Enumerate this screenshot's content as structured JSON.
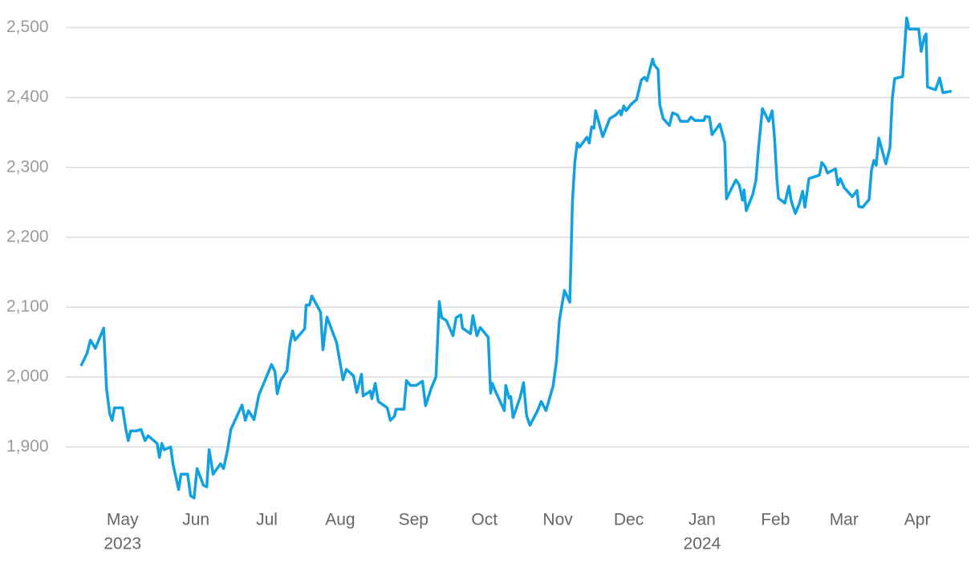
{
  "chart_data": {
    "type": "line",
    "x": [
      -17.6,
      -15,
      -13.6,
      -11.5,
      -8,
      -6.8,
      -5.4,
      -4.4,
      -3.4,
      0,
      1.4,
      2.4,
      3.4,
      6,
      7.8,
      9.5,
      10.8,
      14.6,
      15.6,
      16.6,
      17.6,
      20.3,
      21.4,
      23.7,
      24.7,
      27.5,
      28.8,
      30.2,
      31.5,
      34.2,
      35.6,
      36.6,
      38.3,
      41.4,
      42.7,
      44.4,
      45.8,
      50.5,
      51.9,
      53.2,
      55.6,
      57.6,
      63,
      64.4,
      65.4,
      66.8,
      69.5,
      70.8,
      71.9,
      72.9,
      77,
      77.6,
      79,
      80,
      83.7,
      84.7,
      86.4,
      90.5,
      93.2,
      94.6,
      97.6,
      99,
      101,
      101.7,
      104.7,
      105.4,
      106.8,
      108.1,
      111.9,
      113.2,
      115,
      115.6,
      119,
      120,
      121.7,
      124,
      126.8,
      128.1,
      130.5,
      132.5,
      133.9,
      134.9,
      136.9,
      139.7,
      141,
      143,
      143.7,
      147.1,
      148.1,
      149.8,
      151.2,
      154.6,
      155.6,
      156.3,
      157.6,
      161.4,
      162,
      163.4,
      164.1,
      165.1,
      168.1,
      169.5,
      170.8,
      172.2,
      175.3,
      177,
      179,
      182,
      183.4,
      184.7,
      186.8,
      189.1,
      190.2,
      191.2,
      192.2,
      193.2,
      196.3,
      197.3,
      198.3,
      199.3,
      200,
      203,
      206,
      208.5,
      210.2,
      210.8,
      211.9,
      212.9,
      214.9,
      217.3,
      219.3,
      220.7,
      221.7,
      224.1,
      224.7,
      226.4,
      227.1,
      228.5,
      231.2,
      232.5,
      234.6,
      235.9,
      239,
      240.3,
      242,
      245.8,
      246.4,
      248.1,
      249.2,
      252.5,
      254.6,
      255.3,
      257.3,
      259.3,
      260.7,
      262.1,
      262.7,
      263.7,
      266.4,
      267.8,
      268.8,
      270.5,
      273.2,
      274.6,
      275.6,
      276.6,
      277.3,
      280,
      281.7,
      282.7,
      284.4,
      286.1,
      287.5,
      288.5,
      290.2,
      292.9,
      294.6,
      295.6,
      297,
      298,
      301.4,
      302.4,
      303.4,
      305.1,
      308.5,
      310.5,
      311.2,
      312.9,
      315.6,
      316.6,
      317.6,
      318.6,
      319.7,
      322.7,
      324.4,
      325.4,
      326.4,
      329.8,
      331.5,
      332.5,
      336.6,
      337.6,
      339,
      339.7,
      340.3,
      343.7,
      345.4,
      346.8,
      350.5
    ],
    "series": [
      {
        "color": "#12a1e0",
        "values": [
          2016,
          2034,
          2053,
          2041,
          2070,
          1984,
          1947,
          1938,
          1956,
          1956,
          1925,
          1909,
          1923,
          1923,
          1925,
          1909,
          1916,
          1905,
          1885,
          1905,
          1896,
          1900,
          1874,
          1839,
          1861,
          1861,
          1830,
          1827,
          1869,
          1845,
          1843,
          1896,
          1861,
          1876,
          1869,
          1896,
          1925,
          1960,
          1938,
          1952,
          1939,
          1974,
          2018,
          2008,
          1976,
          1995,
          2009,
          2048,
          2066,
          2053,
          2069,
          2103,
          2103,
          2116,
          2093,
          2039,
          2086,
          2049,
          1996,
          2011,
          2002,
          1978,
          2004,
          1973,
          1980,
          1969,
          1991,
          1965,
          1956,
          1938,
          1944,
          1954,
          1954,
          1995,
          1988,
          1988,
          1994,
          1959,
          1984,
          2000,
          2108,
          2085,
          2081,
          2059,
          2085,
          2089,
          2070,
          2062,
          2088,
          2059,
          2071,
          2057,
          1977,
          1991,
          1980,
          1952,
          1988,
          1970,
          1972,
          1942,
          1971,
          1992,
          1945,
          1931,
          1951,
          1965,
          1952,
          1987,
          2021,
          2082,
          2124,
          2107,
          2252,
          2307,
          2335,
          2329,
          2343,
          2335,
          2358,
          2356,
          2381,
          2344,
          2370,
          2375,
          2381,
          2375,
          2388,
          2381,
          2390,
          2397,
          2425,
          2429,
          2424,
          2455,
          2447,
          2440,
          2390,
          2370,
          2360,
          2378,
          2375,
          2366,
          2366,
          2372,
          2367,
          2367,
          2373,
          2372,
          2347,
          2362,
          2335,
          2255,
          2269,
          2282,
          2275,
          2253,
          2268,
          2238,
          2261,
          2282,
          2326,
          2384,
          2366,
          2381,
          2344,
          2284,
          2256,
          2249,
          2273,
          2252,
          2234,
          2248,
          2266,
          2243,
          2284,
          2287,
          2289,
          2307,
          2301,
          2292,
          2298,
          2275,
          2284,
          2271,
          2258,
          2267,
          2244,
          2243,
          2254,
          2296,
          2310,
          2303,
          2342,
          2305,
          2328,
          2398,
          2427,
          2430,
          2514,
          2498,
          2498,
          2466,
          2487,
          2491,
          2415,
          2411,
          2428,
          2407,
          2409
        ]
      }
    ],
    "xlim": [
      -24,
      358
    ],
    "xticks": [
      {
        "value": 0,
        "label": "May"
      },
      {
        "value": 31,
        "label": "Jun"
      },
      {
        "value": 61,
        "label": "Jul"
      },
      {
        "value": 92,
        "label": "Aug"
      },
      {
        "value": 123,
        "label": "Sep"
      },
      {
        "value": 153,
        "label": "Oct"
      },
      {
        "value": 184,
        "label": "Nov"
      },
      {
        "value": 214,
        "label": "Dec"
      },
      {
        "value": 245,
        "label": "Jan"
      },
      {
        "value": 276,
        "label": "Feb"
      },
      {
        "value": 305,
        "label": "Mar"
      },
      {
        "value": 336,
        "label": "Apr"
      }
    ],
    "x_year_labels": [
      {
        "value": 0,
        "label": "2023"
      },
      {
        "value": 245,
        "label": "2024"
      }
    ],
    "ylim": [
      1820,
      2520
    ],
    "yticks": [
      {
        "value": 1900,
        "label": "1,900"
      },
      {
        "value": 2000,
        "label": "2,000"
      },
      {
        "value": 2100,
        "label": "2,100"
      },
      {
        "value": 2200,
        "label": "2,200"
      },
      {
        "value": 2300,
        "label": "2,300"
      },
      {
        "value": 2400,
        "label": "2,400"
      },
      {
        "value": 2500,
        "label": "2,500"
      }
    ],
    "grid": true
  }
}
